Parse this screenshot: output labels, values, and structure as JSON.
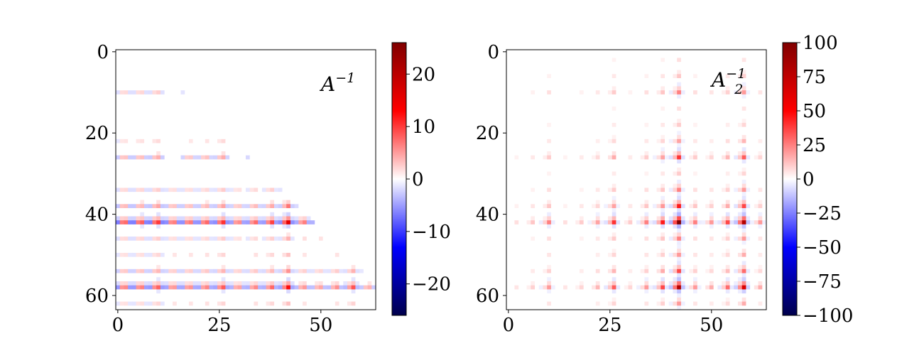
{
  "chart_data": [
    {
      "type": "heatmap",
      "title": "A^{-1}",
      "title_main": "A",
      "title_sup": "−1",
      "title_sub": "",
      "size": 64,
      "colormap": "seismic",
      "vmin": -26,
      "vmax": 26,
      "x_ticks": [
        0,
        25,
        50
      ],
      "y_ticks": [
        0,
        20,
        40,
        60
      ],
      "colorbar_ticks": [
        -20,
        -10,
        0,
        10,
        20
      ],
      "colorbar_tick_labels": [
        "−20",
        "−10",
        "0",
        "10",
        "20"
      ],
      "sparsity_pattern": "recursive 4x4-block self-similar inverse",
      "strong_rows": [
        42,
        46,
        58,
        62
      ],
      "strong_value_range": [
        -26,
        26
      ]
    },
    {
      "type": "heatmap",
      "title": "A_2^{-1}",
      "title_main": "A",
      "title_sup": "−1",
      "title_sub": "2",
      "size": 64,
      "colormap": "seismic",
      "vmin": -100,
      "vmax": 100,
      "x_ticks": [
        0,
        25,
        50
      ],
      "y_ticks": [
        0,
        20,
        40,
        60
      ],
      "colorbar_ticks": [
        -100,
        -75,
        -50,
        -25,
        0,
        25,
        50,
        75,
        100
      ],
      "colorbar_tick_labels": [
        "−100",
        "−75",
        "−50",
        "−25",
        "0",
        "25",
        "50",
        "75",
        "100"
      ],
      "sparsity_pattern": "symmetric recursive 4x4-block self-similar inverse",
      "strong_rows": [
        42,
        46,
        58,
        62
      ],
      "strong_value_range": [
        -100,
        100
      ]
    }
  ]
}
